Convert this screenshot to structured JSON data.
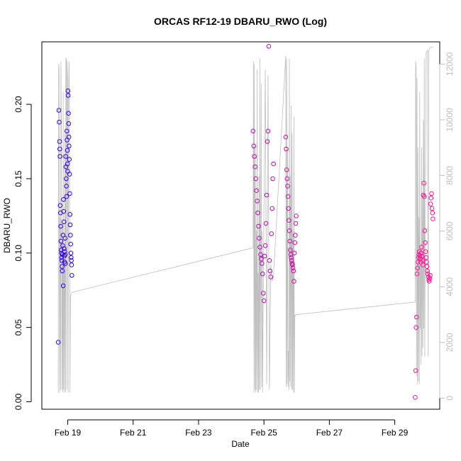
{
  "chart_data": {
    "type": "scatter",
    "title": "ORCAS RF12-19 DBARU_RWO (Log)",
    "xlabel": "Date",
    "ylabel": "DBARU_RWO",
    "xlim": [
      "2016-02-18T05:00",
      "2016-03-01T09:00"
    ],
    "ylim": [
      -0.005,
      0.242
    ],
    "y2lim": [
      -400,
      12800
    ],
    "x_ticks": [
      "2016-02-19",
      "2016-02-21",
      "2016-02-23",
      "2016-02-25",
      "2016-02-27",
      "2016-02-29"
    ],
    "x_tick_labels": [
      "Feb 19",
      "Feb 21",
      "Feb 23",
      "Feb 25",
      "Feb 27",
      "Feb 29"
    ],
    "y_ticks": [
      "0.00",
      "0.05",
      "0.10",
      "0.15",
      "0.20"
    ],
    "y2_ticks": [
      "0",
      "2000",
      "4000",
      "6000",
      "8000",
      "10000",
      "12000"
    ],
    "grid": false,
    "colors": {
      "first_flight": "#3300ff",
      "last_flight": "#ff1493",
      "altitude_line": "#bebebe",
      "axis": "#000000",
      "right_axis": "#bebebe"
    },
    "series": [
      {
        "points": [
          [
            "2016-02-18T17:00",
            0.04
          ],
          [
            "2016-02-18T17:30",
            0.196
          ],
          [
            "2016-02-18T17:45",
            0.188
          ],
          [
            "2016-02-18T18:00",
            0.175
          ],
          [
            "2016-02-18T18:10",
            0.17
          ],
          [
            "2016-02-18T18:20",
            0.165
          ],
          [
            "2016-02-18T18:30",
            0.132
          ],
          [
            "2016-02-18T18:40",
            0.127
          ],
          [
            "2016-02-18T18:50",
            0.118
          ],
          [
            "2016-02-18T19:00",
            0.108
          ],
          [
            "2016-02-18T19:10",
            0.102
          ],
          [
            "2016-02-18T19:20",
            0.1
          ],
          [
            "2016-02-18T19:30",
            0.097
          ],
          [
            "2016-02-18T19:40",
            0.095
          ],
          [
            "2016-02-18T19:50",
            0.091
          ],
          [
            "2016-02-18T20:00",
            0.088
          ],
          [
            "2016-02-18T20:10",
            0.099
          ],
          [
            "2016-02-18T20:20",
            0.105
          ],
          [
            "2016-02-18T20:30",
            0.112
          ],
          [
            "2016-02-18T20:40",
            0.078
          ],
          [
            "2016-02-18T20:50",
            0.136
          ],
          [
            "2016-02-18T21:00",
            0.128
          ],
          [
            "2016-02-18T21:10",
            0.121
          ],
          [
            "2016-02-18T21:20",
            0.103
          ],
          [
            "2016-02-18T21:30",
            0.098
          ],
          [
            "2016-02-18T21:40",
            0.094
          ],
          [
            "2016-02-18T21:50",
            0.101
          ],
          [
            "2016-02-18T22:00",
            0.11
          ],
          [
            "2016-02-18T22:10",
            0.099
          ],
          [
            "2016-02-18T22:20",
            0.093
          ],
          [
            "2016-02-18T22:30",
            0.165
          ],
          [
            "2016-02-18T22:40",
            0.158
          ],
          [
            "2016-02-18T22:50",
            0.15
          ],
          [
            "2016-02-18T23:00",
            0.145
          ],
          [
            "2016-02-18T23:10",
            0.138
          ],
          [
            "2016-02-18T23:20",
            0.182
          ],
          [
            "2016-02-18T23:30",
            0.176
          ],
          [
            "2016-02-18T23:40",
            0.169
          ],
          [
            "2016-02-18T23:50",
            0.16
          ],
          [
            "2016-02-19T00:00",
            0.155
          ],
          [
            "2016-02-19T00:10",
            0.209
          ],
          [
            "2016-02-19T00:20",
            0.206
          ],
          [
            "2016-02-19T00:30",
            0.194
          ],
          [
            "2016-02-19T00:40",
            0.187
          ],
          [
            "2016-02-19T00:50",
            0.178
          ],
          [
            "2016-02-19T01:00",
            0.172
          ],
          [
            "2016-02-19T01:10",
            0.163
          ],
          [
            "2016-02-19T01:20",
            0.153
          ],
          [
            "2016-02-19T01:30",
            0.14
          ],
          [
            "2016-02-19T01:40",
            0.126
          ],
          [
            "2016-02-19T01:50",
            0.119
          ],
          [
            "2016-02-19T02:00",
            0.112
          ],
          [
            "2016-02-19T02:10",
            0.106
          ],
          [
            "2016-02-19T02:20",
            0.1
          ],
          [
            "2016-02-19T02:30",
            0.097
          ],
          [
            "2016-02-19T02:40",
            0.095
          ],
          [
            "2016-02-19T02:50",
            0.092
          ],
          [
            "2016-02-19T03:00",
            0.085
          ]
        ]
      },
      {
        "points": [
          [
            "2016-02-24T16:00",
            0.182
          ],
          [
            "2016-02-24T16:30",
            0.172
          ],
          [
            "2016-02-24T17:00",
            0.165
          ],
          [
            "2016-02-24T17:30",
            0.158
          ],
          [
            "2016-02-24T18:00",
            0.15
          ],
          [
            "2016-02-24T18:30",
            0.142
          ],
          [
            "2016-02-24T19:00",
            0.135
          ],
          [
            "2016-02-24T19:30",
            0.127
          ],
          [
            "2016-02-24T20:00",
            0.118
          ],
          [
            "2016-02-24T20:30",
            0.11
          ],
          [
            "2016-02-24T21:00",
            0.104
          ],
          [
            "2016-02-24T21:30",
            0.099
          ],
          [
            "2016-02-24T22:00",
            0.096
          ],
          [
            "2016-02-24T22:30",
            0.093
          ],
          [
            "2016-02-24T23:00",
            0.086
          ],
          [
            "2016-02-24T23:30",
            0.073
          ],
          [
            "2016-02-25T00:00",
            0.068
          ],
          [
            "2016-02-25T00:30",
            0.098
          ],
          [
            "2016-02-25T01:00",
            0.105
          ],
          [
            "2016-02-25T01:30",
            0.12
          ],
          [
            "2016-02-25T02:00",
            0.139
          ],
          [
            "2016-02-25T02:30",
            0.175
          ],
          [
            "2016-02-25T03:00",
            0.182
          ],
          [
            "2016-02-25T03:30",
            0.239
          ],
          [
            "2016-02-25T04:00",
            0.095
          ],
          [
            "2016-02-25T04:30",
            0.088
          ],
          [
            "2016-02-25T05:00",
            0.084
          ],
          [
            "2016-02-25T05:30",
            0.113
          ],
          [
            "2016-02-25T06:00",
            0.13
          ],
          [
            "2016-02-25T06:30",
            0.15
          ],
          [
            "2016-02-25T07:00",
            0.16
          ]
        ]
      },
      {
        "points": [
          [
            "2016-02-25T16:00",
            0.178
          ],
          [
            "2016-02-25T16:20",
            0.17
          ],
          [
            "2016-02-25T16:40",
            0.156
          ],
          [
            "2016-02-25T17:00",
            0.15
          ],
          [
            "2016-02-25T17:20",
            0.145
          ],
          [
            "2016-02-25T17:40",
            0.138
          ],
          [
            "2016-02-25T18:00",
            0.13
          ],
          [
            "2016-02-25T18:20",
            0.122
          ],
          [
            "2016-02-25T18:40",
            0.115
          ],
          [
            "2016-02-25T19:00",
            0.108
          ],
          [
            "2016-02-25T19:20",
            0.102
          ],
          [
            "2016-02-25T19:40",
            0.099
          ],
          [
            "2016-02-25T20:00",
            0.097
          ],
          [
            "2016-02-25T20:20",
            0.095
          ],
          [
            "2016-02-25T20:40",
            0.093
          ],
          [
            "2016-02-25T21:00",
            0.092
          ],
          [
            "2016-02-25T21:20",
            0.09
          ],
          [
            "2016-02-25T21:40",
            0.088
          ],
          [
            "2016-02-25T22:00",
            0.081
          ],
          [
            "2016-02-25T22:20",
            0.1
          ],
          [
            "2016-02-25T22:40",
            0.107
          ],
          [
            "2016-02-25T23:00",
            0.112
          ],
          [
            "2016-02-25T23:20",
            0.12
          ],
          [
            "2016-02-25T23:40",
            0.125
          ]
        ]
      },
      {
        "points": [
          [
            "2016-02-29T15:00",
            0.003
          ],
          [
            "2016-02-29T15:20",
            0.021
          ],
          [
            "2016-02-29T15:40",
            0.05
          ],
          [
            "2016-02-29T16:00",
            0.057
          ],
          [
            "2016-02-29T16:20",
            0.086
          ],
          [
            "2016-02-29T16:40",
            0.09
          ],
          [
            "2016-02-29T17:00",
            0.094
          ],
          [
            "2016-02-29T17:20",
            0.097
          ],
          [
            "2016-02-29T17:40",
            0.099
          ],
          [
            "2016-02-29T18:00",
            0.101
          ],
          [
            "2016-02-29T18:20",
            0.098
          ],
          [
            "2016-02-29T18:40",
            0.096
          ],
          [
            "2016-02-29T19:00",
            0.094
          ],
          [
            "2016-02-29T19:20",
            0.1
          ],
          [
            "2016-02-29T19:40",
            0.104
          ],
          [
            "2016-02-29T20:00",
            0.098
          ],
          [
            "2016-02-29T20:20",
            0.095
          ],
          [
            "2016-02-29T20:40",
            0.092
          ],
          [
            "2016-02-29T21:00",
            0.139
          ],
          [
            "2016-02-29T21:20",
            0.147
          ],
          [
            "2016-02-29T21:40",
            0.138
          ],
          [
            "2016-02-29T22:00",
            0.115
          ],
          [
            "2016-02-29T22:20",
            0.107
          ],
          [
            "2016-02-29T22:40",
            0.101
          ],
          [
            "2016-02-29T23:00",
            0.097
          ],
          [
            "2016-02-29T23:20",
            0.094
          ],
          [
            "2016-02-29T23:40",
            0.091
          ],
          [
            "2016-03-01T00:00",
            0.088
          ],
          [
            "2016-03-01T00:20",
            0.086
          ],
          [
            "2016-03-01T00:40",
            0.084
          ],
          [
            "2016-03-01T01:00",
            0.082
          ],
          [
            "2016-03-01T01:20",
            0.081
          ],
          [
            "2016-03-01T01:40",
            0.083
          ],
          [
            "2016-03-01T02:00",
            0.085
          ],
          [
            "2016-03-01T02:20",
            0.133
          ],
          [
            "2016-03-01T02:40",
            0.137
          ],
          [
            "2016-03-01T03:00",
            0.14
          ],
          [
            "2016-03-01T03:20",
            0.13
          ],
          [
            "2016-03-01T03:40",
            0.127
          ],
          [
            "2016-03-01T04:00",
            0.123
          ]
        ]
      }
    ],
    "altitude_series": [
      [
        "2016-02-18T17:00",
        200
      ],
      [
        "2016-02-18T17:20",
        12000
      ],
      [
        "2016-02-18T17:40",
        11800
      ],
      [
        "2016-02-18T18:00",
        200
      ],
      [
        "2016-02-18T18:20",
        6500
      ],
      [
        "2016-02-18T18:40",
        300
      ],
      [
        "2016-02-18T19:00",
        12100
      ],
      [
        "2016-02-18T19:20",
        10000
      ],
      [
        "2016-02-18T19:40",
        300
      ],
      [
        "2016-02-18T20:00",
        6200
      ],
      [
        "2016-02-18T20:20",
        200
      ],
      [
        "2016-02-18T20:40",
        11000
      ],
      [
        "2016-02-18T21:00",
        300
      ],
      [
        "2016-02-18T21:20",
        5000
      ],
      [
        "2016-02-18T21:40",
        200
      ],
      [
        "2016-02-18T22:00",
        9500
      ],
      [
        "2016-02-18T22:20",
        200
      ],
      [
        "2016-02-18T22:40",
        12200
      ],
      [
        "2016-02-18T23:00",
        12200
      ],
      [
        "2016-02-18T23:20",
        300
      ],
      [
        "2016-02-18T23:40",
        12100
      ],
      [
        "2016-02-19T00:00",
        11500
      ],
      [
        "2016-02-19T00:20",
        200
      ],
      [
        "2016-02-19T00:40",
        11000
      ],
      [
        "2016-02-19T01:00",
        12100
      ],
      [
        "2016-02-19T01:20",
        9000
      ],
      [
        "2016-02-19T01:40",
        200
      ],
      [
        "2016-02-19T02:00",
        3600
      ],
      [
        "2016-02-19T02:20",
        3700
      ],
      [
        "2016-02-19T03:00",
        3800
      ],
      [
        "2016-02-24T16:00",
        5400
      ],
      [
        "2016-02-24T16:20",
        12100
      ],
      [
        "2016-02-24T16:40",
        200
      ],
      [
        "2016-02-24T17:00",
        12000
      ],
      [
        "2016-02-24T17:20",
        300
      ],
      [
        "2016-02-24T17:40",
        9000
      ],
      [
        "2016-02-24T18:00",
        200
      ],
      [
        "2016-02-24T18:20",
        6000
      ],
      [
        "2016-02-24T18:40",
        300
      ],
      [
        "2016-02-24T19:00",
        11800
      ],
      [
        "2016-02-24T19:20",
        200
      ],
      [
        "2016-02-24T19:40",
        4500
      ],
      [
        "2016-02-24T20:00",
        200
      ],
      [
        "2016-02-24T20:20",
        8000
      ],
      [
        "2016-02-24T20:40",
        300
      ],
      [
        "2016-02-24T21:00",
        12200
      ],
      [
        "2016-02-24T21:20",
        300
      ],
      [
        "2016-02-24T22:00",
        11300
      ],
      [
        "2016-02-24T22:20",
        400
      ],
      [
        "2016-02-24T22:40",
        6000
      ],
      [
        "2016-02-24T23:00",
        200
      ],
      [
        "2016-02-25T00:00",
        7000
      ],
      [
        "2016-02-25T01:00",
        11800
      ],
      [
        "2016-02-25T02:00",
        500
      ],
      [
        "2016-02-25T03:00",
        11600
      ],
      [
        "2016-02-25T04:00",
        300
      ],
      [
        "2016-02-25T05:00",
        4800
      ],
      [
        "2016-02-25T06:00",
        4200
      ],
      [
        "2016-02-25T07:00",
        4400
      ],
      [
        "2016-02-25T16:00",
        12300
      ],
      [
        "2016-02-25T16:20",
        400
      ],
      [
        "2016-02-25T16:40",
        12200
      ],
      [
        "2016-02-25T17:00",
        500
      ],
      [
        "2016-02-25T17:20",
        9000
      ],
      [
        "2016-02-25T17:40",
        400
      ],
      [
        "2016-02-25T18:00",
        1700
      ],
      [
        "2016-02-25T18:20",
        300
      ],
      [
        "2016-02-25T18:40",
        12200
      ],
      [
        "2016-02-25T19:00",
        600
      ],
      [
        "2016-02-25T19:20",
        8000
      ],
      [
        "2016-02-25T19:40",
        400
      ],
      [
        "2016-02-25T20:00",
        10500
      ],
      [
        "2016-02-25T20:20",
        300
      ],
      [
        "2016-02-25T20:40",
        9500
      ],
      [
        "2016-02-25T21:00",
        300
      ],
      [
        "2016-02-25T21:20",
        6000
      ],
      [
        "2016-02-25T21:40",
        200
      ],
      [
        "2016-02-25T22:00",
        10100
      ],
      [
        "2016-02-25T22:20",
        200
      ],
      [
        "2016-02-25T22:40",
        3000
      ],
      [
        "2016-02-25T23:00",
        2950
      ],
      [
        "2016-02-25T23:40",
        3000
      ],
      [
        "2016-02-29T15:00",
        3450
      ],
      [
        "2016-02-29T15:20",
        12100
      ],
      [
        "2016-02-29T15:40",
        11900
      ],
      [
        "2016-02-29T16:00",
        800
      ],
      [
        "2016-02-29T16:20",
        11500
      ],
      [
        "2016-02-29T16:40",
        500
      ],
      [
        "2016-02-29T17:00",
        9000
      ],
      [
        "2016-02-29T17:20",
        600
      ],
      [
        "2016-02-29T17:40",
        6500
      ],
      [
        "2016-02-29T18:00",
        500
      ],
      [
        "2016-02-29T18:20",
        11000
      ],
      [
        "2016-02-29T18:40",
        2500
      ],
      [
        "2016-02-29T19:00",
        4800
      ],
      [
        "2016-02-29T19:20",
        1200
      ],
      [
        "2016-02-29T19:40",
        9000
      ],
      [
        "2016-02-29T20:00",
        1500
      ],
      [
        "2016-02-29T20:20",
        7200
      ],
      [
        "2016-02-29T20:40",
        1800
      ],
      [
        "2016-02-29T21:00",
        10000
      ],
      [
        "2016-02-29T21:20",
        2500
      ],
      [
        "2016-02-29T21:40",
        12200
      ],
      [
        "2016-02-29T22:00",
        1500
      ],
      [
        "2016-02-29T23:00",
        12400
      ],
      [
        "2016-03-01T00:00",
        12500
      ],
      [
        "2016-03-01T00:30",
        1500
      ],
      [
        "2016-03-01T01:00",
        12500
      ],
      [
        "2016-03-01T02:00",
        12600
      ],
      [
        "2016-03-01T04:00",
        12600
      ]
    ]
  }
}
